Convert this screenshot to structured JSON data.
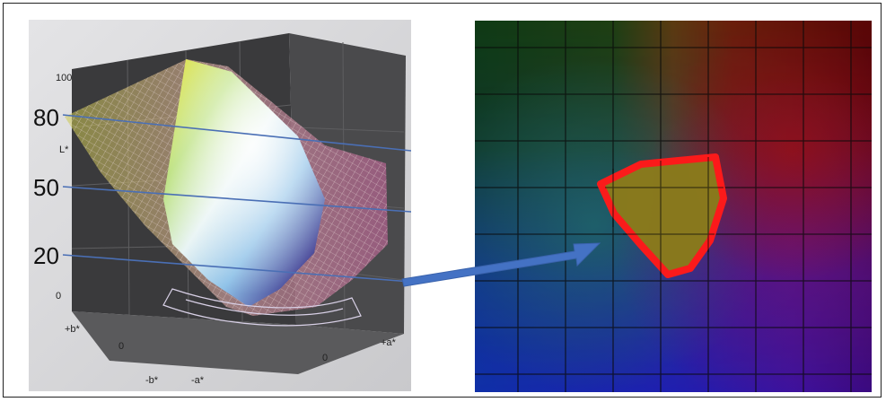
{
  "left_figure": {
    "axis_labels": {
      "l_star": "L*",
      "plus_b": "+b*",
      "minus_b": "-b*",
      "plus_a": "+a*",
      "minus_a": "-a*"
    },
    "tick_labels": {
      "top": "100",
      "bottom": "0",
      "b_zero": "0",
      "a_zero": "0"
    },
    "level_labels": [
      "80",
      "50",
      "20"
    ]
  },
  "colors": {
    "level_line": "#4a6fb5",
    "arrow": "#4472c4",
    "gamut_outline": "#ff1a1a",
    "gamut_fill": "#8a7a1c"
  }
}
